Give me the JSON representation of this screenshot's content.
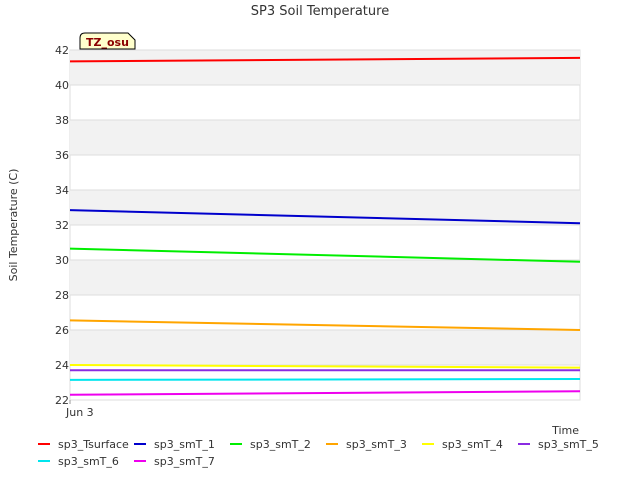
{
  "chart_data": {
    "type": "line",
    "title": "SP3 Soil Temperature",
    "xlabel": "Time",
    "ylabel": "Soil Temperature (C)",
    "ylim": [
      22,
      42
    ],
    "yticks": [
      22,
      24,
      26,
      28,
      30,
      32,
      34,
      36,
      38,
      40,
      42
    ],
    "xlim": [
      0,
      1
    ],
    "xticks": [
      {
        "x": 0,
        "label": "Jun 3"
      }
    ],
    "grid": "horizontal-bands",
    "legend_position": "bottom",
    "badge": "TZ_osu",
    "series": [
      {
        "name": "sp3_Tsurface",
        "color": "#ff0000",
        "x": [
          0,
          1
        ],
        "values": [
          41.35,
          41.55
        ]
      },
      {
        "name": "sp3_smT_1",
        "color": "#0000cc",
        "x": [
          0,
          1
        ],
        "values": [
          32.85,
          32.1
        ]
      },
      {
        "name": "sp3_smT_2",
        "color": "#00ee00",
        "x": [
          0,
          1
        ],
        "values": [
          30.65,
          29.9
        ]
      },
      {
        "name": "sp3_smT_3",
        "color": "#ffa500",
        "x": [
          0,
          1
        ],
        "values": [
          26.55,
          26.0
        ]
      },
      {
        "name": "sp3_smT_4",
        "color": "#ffff00",
        "x": [
          0,
          1
        ],
        "values": [
          24.0,
          23.85
        ]
      },
      {
        "name": "sp3_smT_5",
        "color": "#8a2be2",
        "x": [
          0,
          1
        ],
        "values": [
          23.7,
          23.7
        ]
      },
      {
        "name": "sp3_smT_6",
        "color": "#00e5ee",
        "x": [
          0,
          1
        ],
        "values": [
          23.15,
          23.2
        ]
      },
      {
        "name": "sp3_smT_7",
        "color": "#ee00ee",
        "x": [
          0,
          1
        ],
        "values": [
          22.3,
          22.5
        ]
      }
    ]
  }
}
